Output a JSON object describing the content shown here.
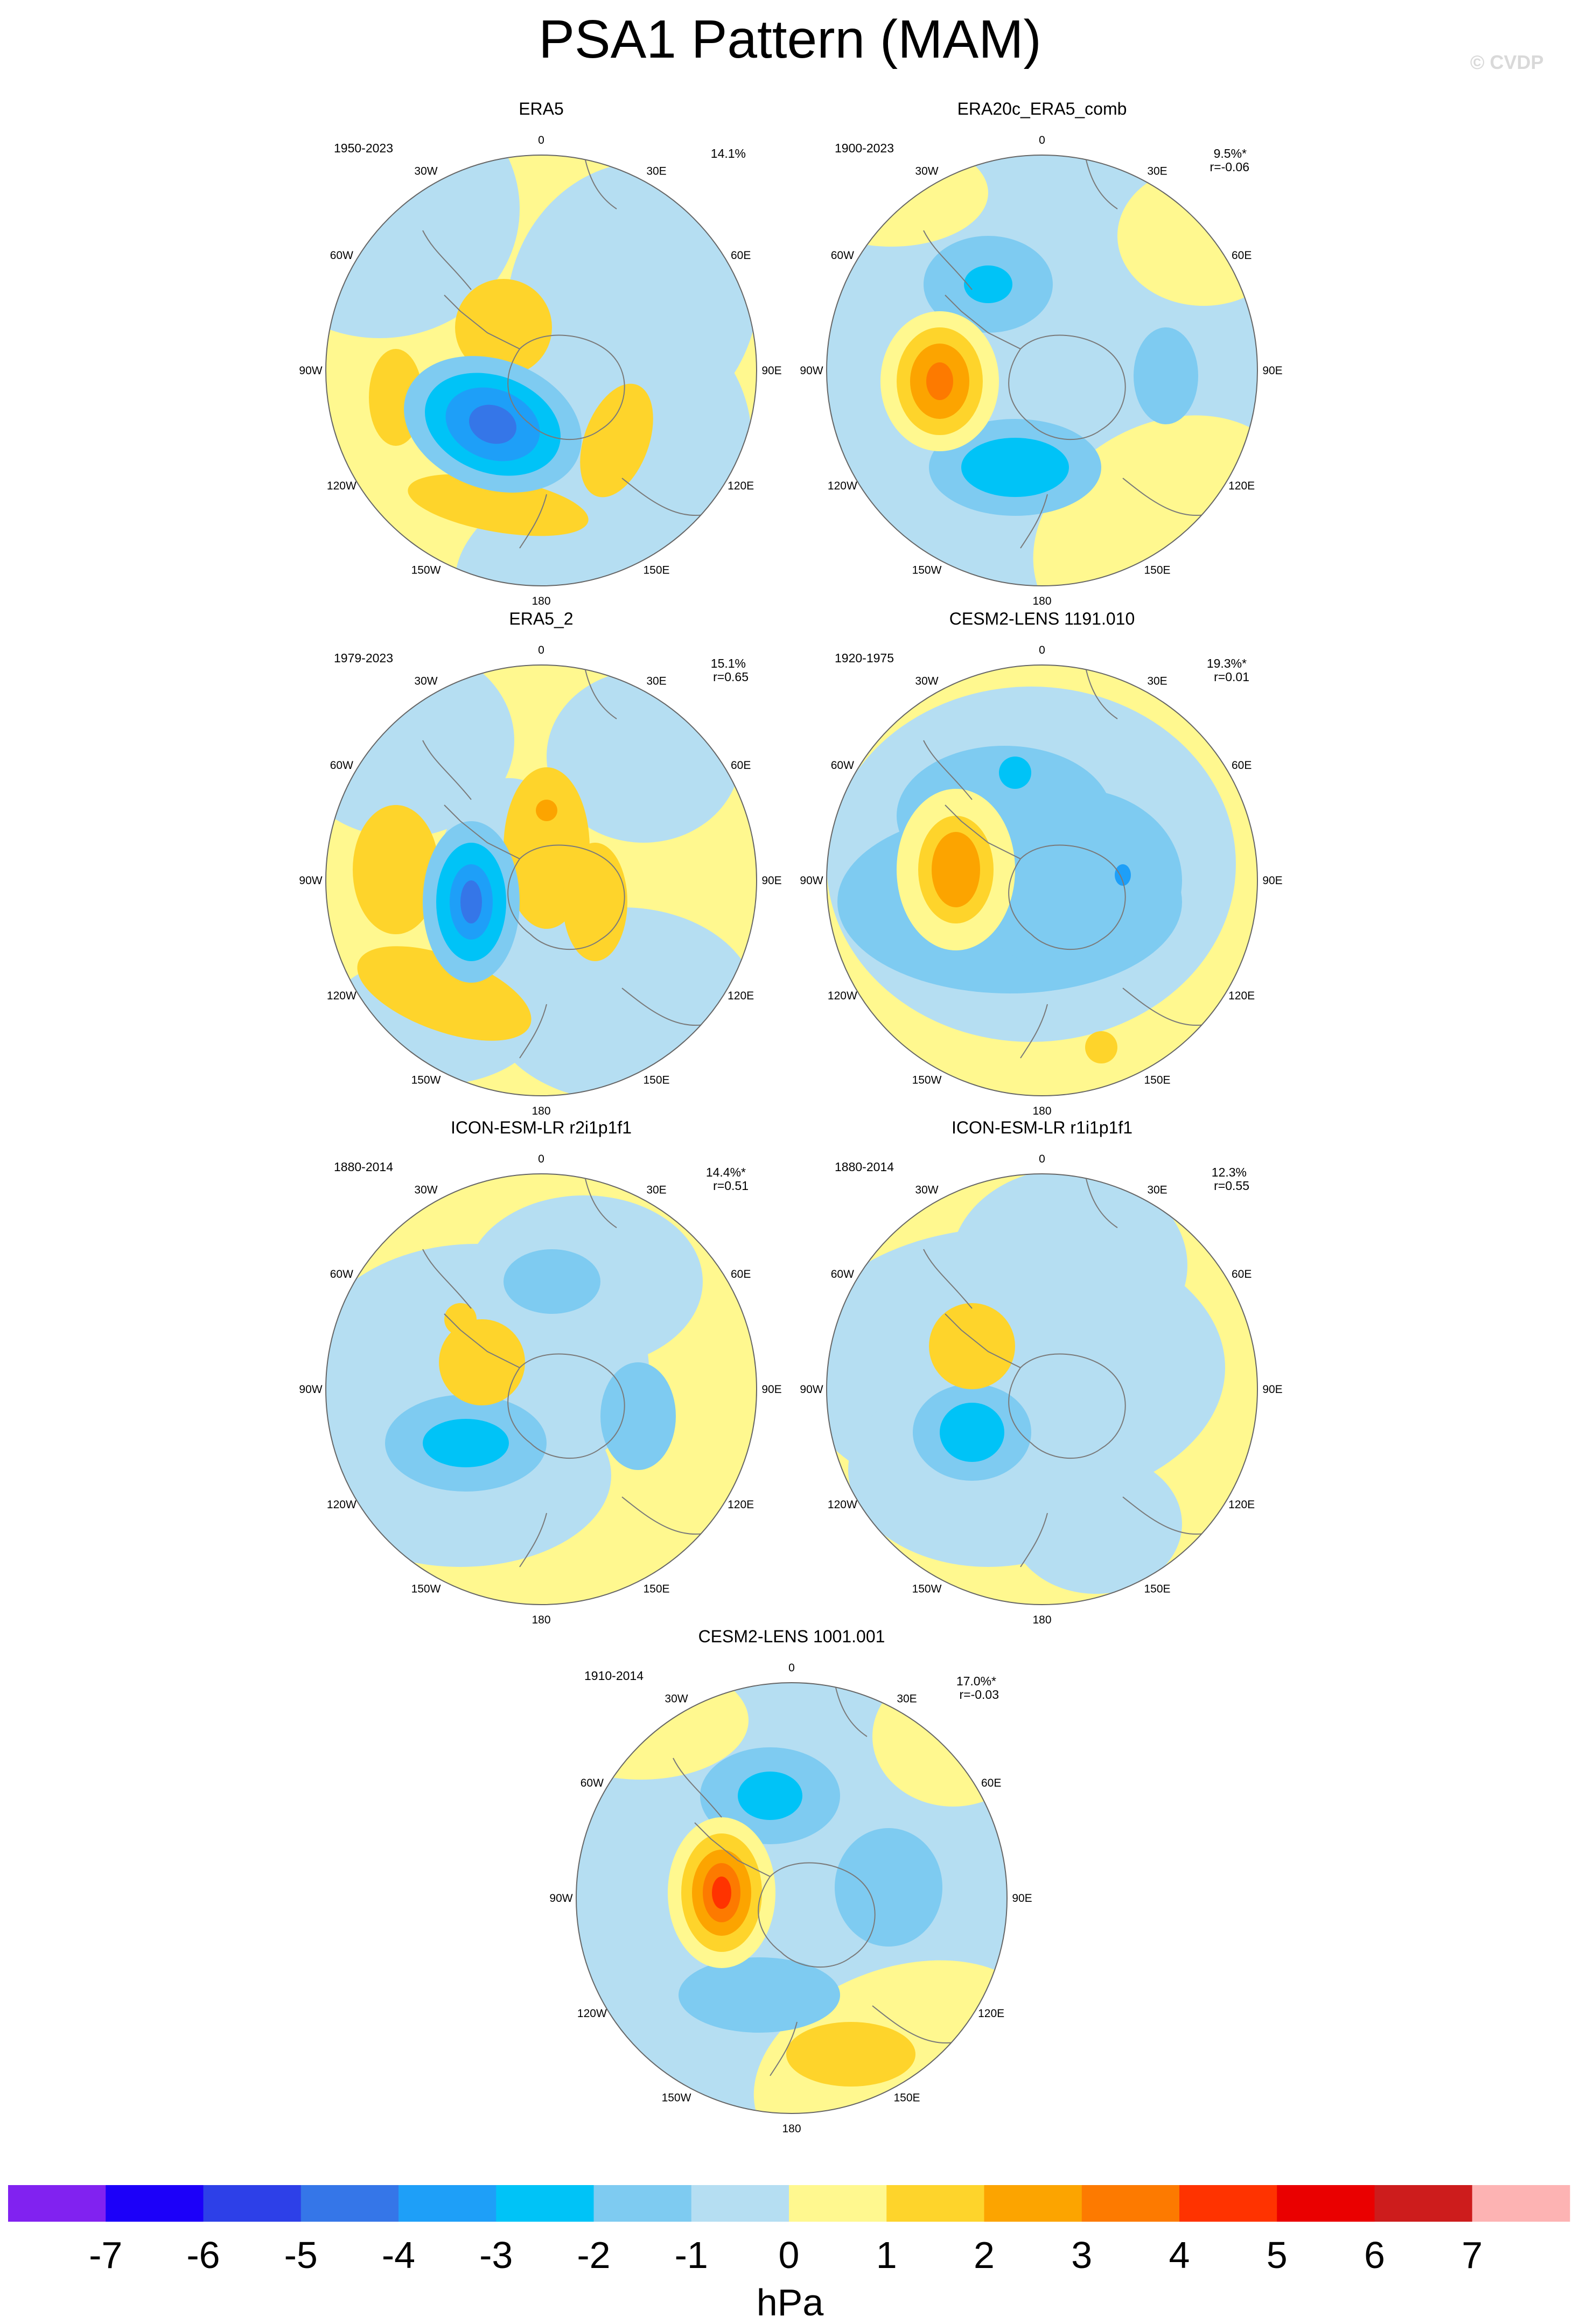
{
  "title": "PSA1 Pattern (MAM)",
  "watermark": "© CVDP",
  "colors": {
    "background": "#ffffff",
    "land_outline": "#7a7a7a",
    "disk_outline": "#666666"
  },
  "panels": [
    {
      "name": "ERA5",
      "years": "1950-2023",
      "pct": "14.1%",
      "r": ""
    },
    {
      "name": "ERA20c_ERA5_comb",
      "years": "1900-2023",
      "pct": "9.5%*",
      "r": "r=-0.06"
    },
    {
      "name": "ERA5_2",
      "years": "1979-2023",
      "pct": "15.1%",
      "r": "r=0.65"
    },
    {
      "name": "CESM2-LENS 1191.010",
      "years": "1920-1975",
      "pct": "19.3%*",
      "r": "r=0.01"
    },
    {
      "name": "ICON-ESM-LR r2i1p1f1",
      "years": "1880-2014",
      "pct": "14.4%*",
      "r": "r=0.51"
    },
    {
      "name": "ICON-ESM-LR r1i1p1f1",
      "years": "1880-2014",
      "pct": "12.3%",
      "r": "r=0.55"
    },
    {
      "name": "CESM2-LENS 1001.001",
      "years": "1910-2014",
      "pct": "17.0%*",
      "r": "r=-0.03"
    }
  ],
  "lon_labels": [
    "0",
    "30E",
    "60E",
    "90E",
    "120E",
    "150E",
    "180",
    "150W",
    "120W",
    "90W",
    "60W",
    "30W"
  ],
  "colorbar": {
    "unit": "hPa",
    "tick_labels": [
      "-7",
      "-6",
      "-5",
      "-4",
      "-3",
      "-2",
      "-1",
      "0",
      "1",
      "2",
      "3",
      "4",
      "5",
      "6",
      "7"
    ],
    "colors": [
      "#8122f0",
      "#1c00f9",
      "#2d40e8",
      "#3576e8",
      "#1e9ff8",
      "#00c3f7",
      "#7ecbf1",
      "#b5def2",
      "#fff88f",
      "#fed42b",
      "#fca400",
      "#fd7a00",
      "#ff3300",
      "#ea0000",
      "#cd1c1c",
      "#fdb3b3"
    ]
  }
}
